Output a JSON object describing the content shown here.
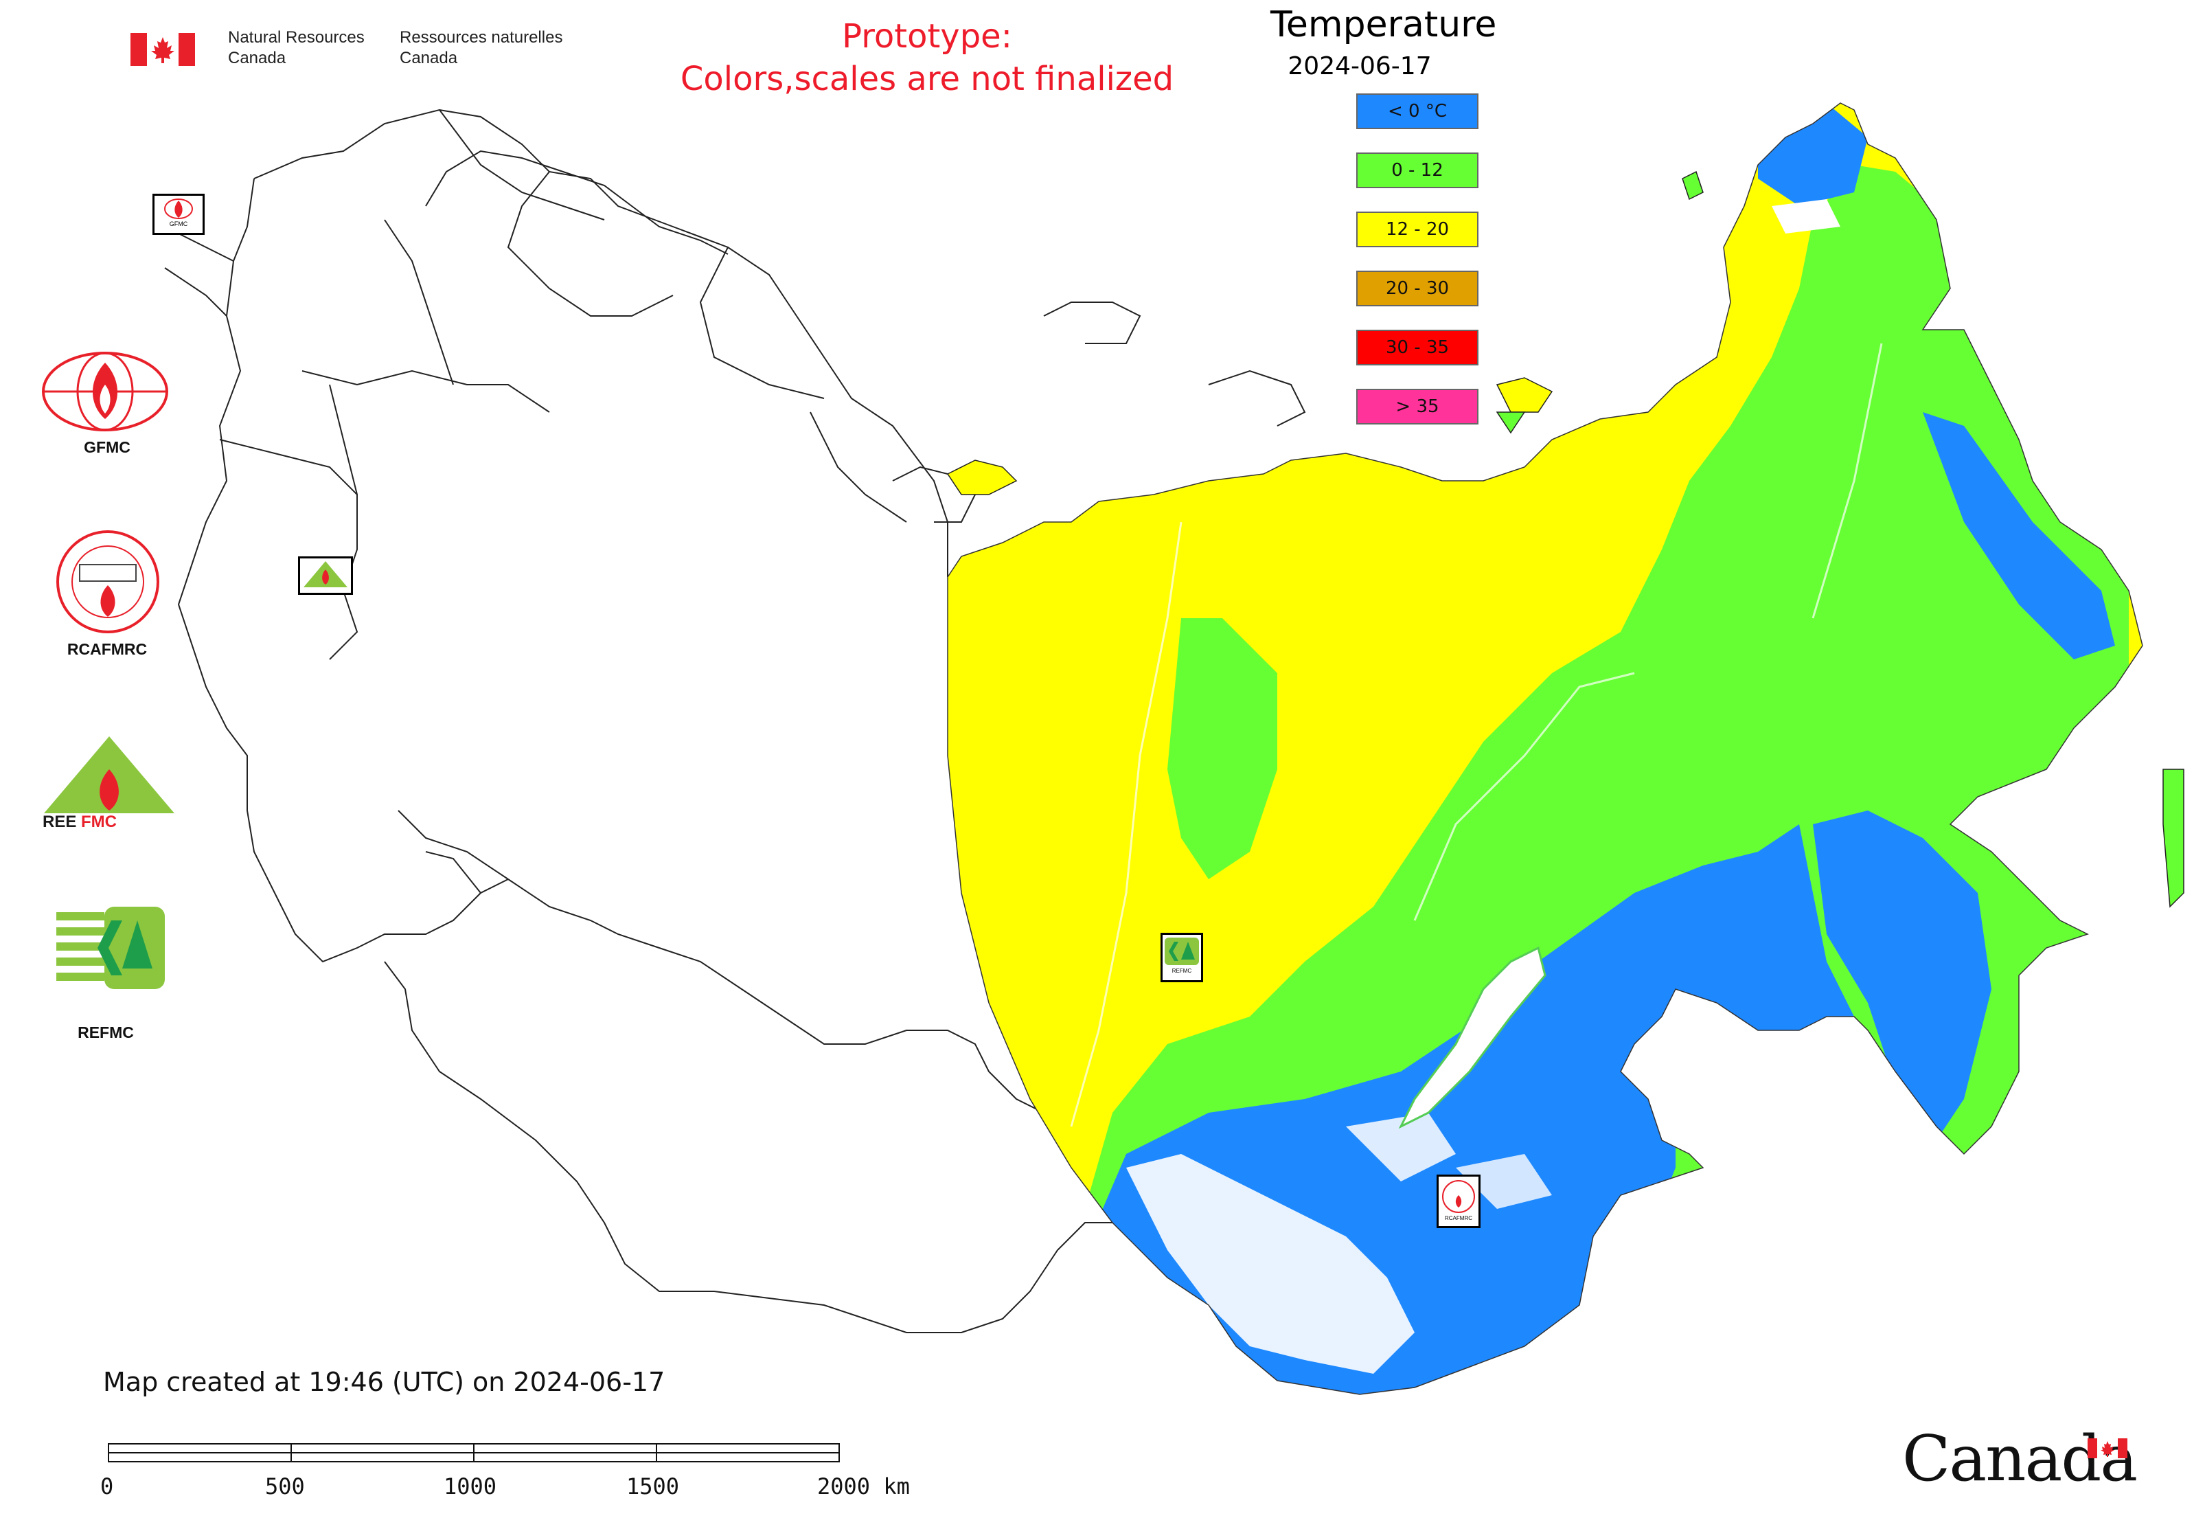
{
  "header": {
    "org_en_line1": "Natural Resources",
    "org_en_line2": "Canada",
    "org_fr_line1": "Ressources naturelles",
    "org_fr_line2": "Canada",
    "prototype_line1": "Prototype:",
    "prototype_line2": "Colors,scales are not finalized"
  },
  "legend": {
    "title": "Temperature",
    "date": "2024-06-17",
    "items": [
      {
        "label": "< 0 °C",
        "color": "#1e88ff"
      },
      {
        "label": "0 - 12",
        "color": "#66ff33"
      },
      {
        "label": "12 - 20",
        "color": "#ffff00"
      },
      {
        "label": "20 - 30",
        "color": "#e0a000"
      },
      {
        "label": "30 - 35",
        "color": "#ff0000"
      },
      {
        "label": "> 35",
        "color": "#ff3399"
      }
    ]
  },
  "logos": [
    {
      "name": "GFMC",
      "label": "GFMC"
    },
    {
      "name": "RCAFMRC",
      "label": "RCAFMRC"
    },
    {
      "name": "REEFMC",
      "label": "REEFMC"
    },
    {
      "name": "REFMC",
      "label": "REFMC"
    }
  ],
  "map_markers": {
    "gfmc": "GFMC",
    "reefmc": "REEFMC",
    "refmc": "REFMC",
    "rcafmrc": "RCAFMRC"
  },
  "footer": {
    "created": "Map created at 19:46 (UTC) on 2024-06-17",
    "scale_ticks": [
      "0",
      "500",
      "1000",
      "1500",
      "2000 km"
    ],
    "wordmark": "Canada"
  },
  "colors": {
    "cold": "#1e88ff",
    "cool": "#66ff33",
    "mild": "#ffff00",
    "no_data": "#ffffff",
    "prototype_text": "#ee1c2b",
    "canada_red": "#e8202a"
  }
}
